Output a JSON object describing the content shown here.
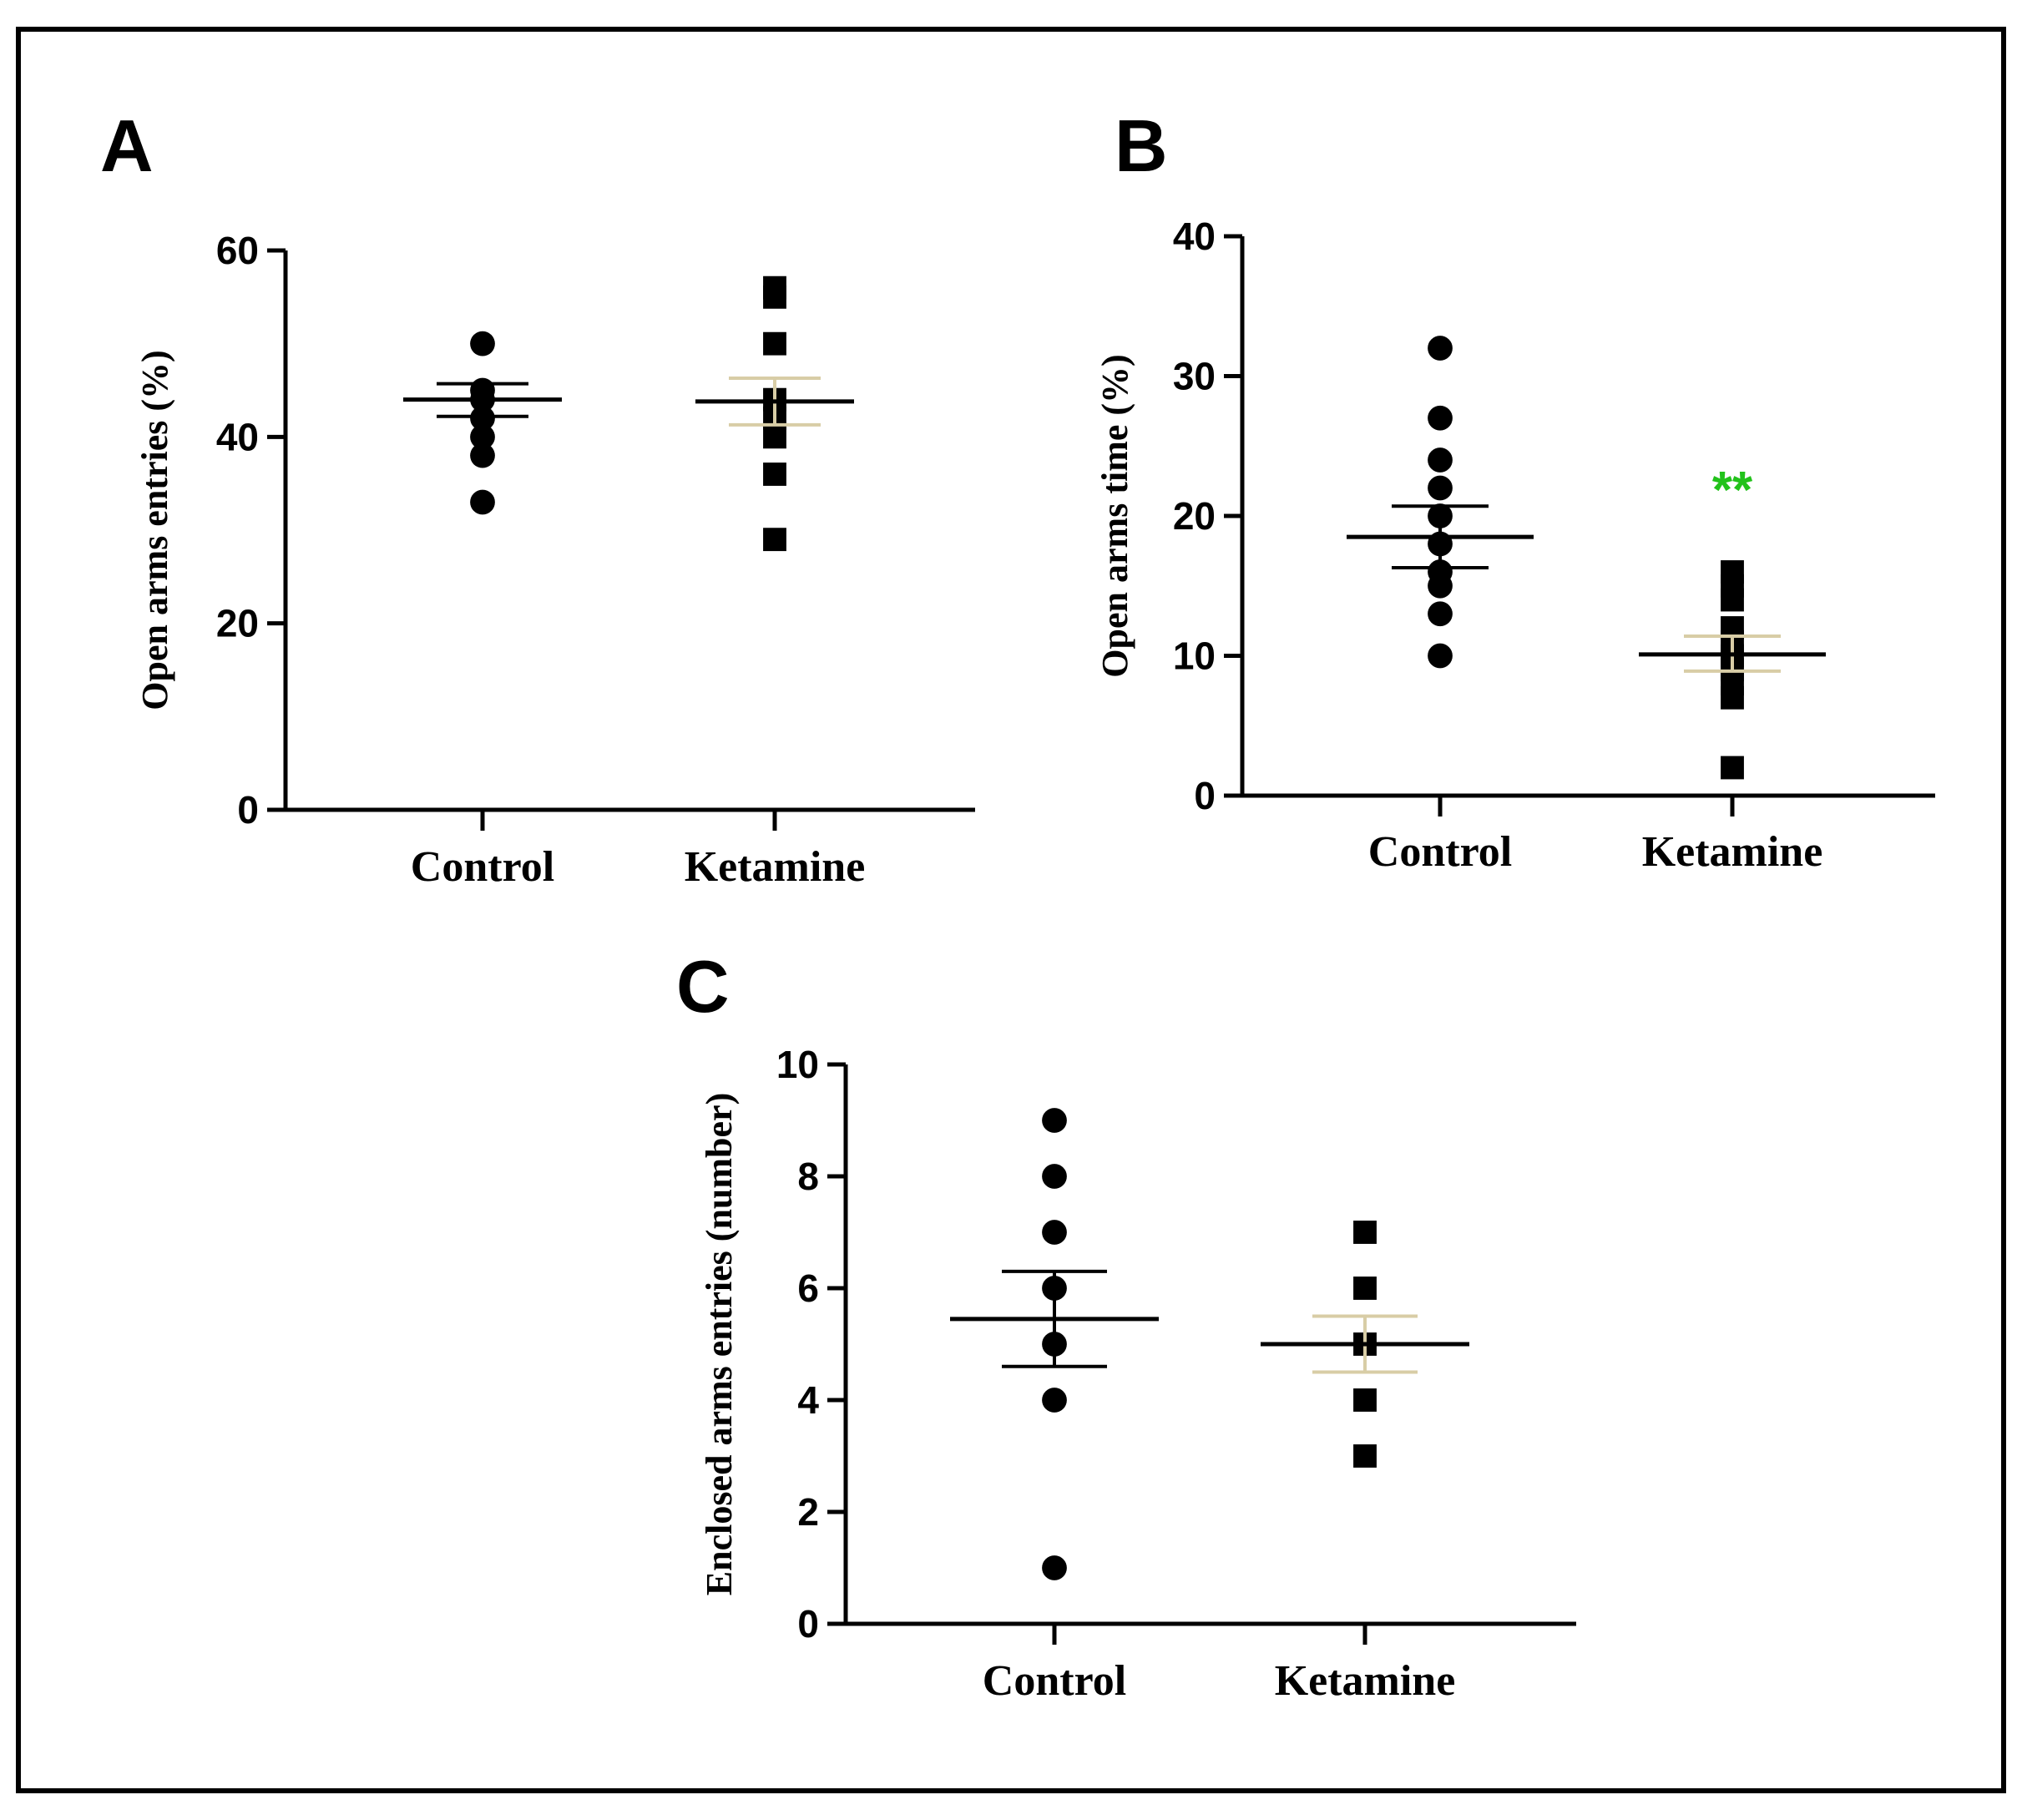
{
  "figure": {
    "frame_color": "#000000",
    "significance_color": "#22c21b"
  },
  "chart_data": [
    {
      "id": "A",
      "panel_label": "A",
      "type": "scatter",
      "subtype": "dot plot with mean and SEM",
      "ylabel": "Open arms entries (%)",
      "ylim": [
        0,
        60
      ],
      "yticks": [
        0,
        20,
        40,
        60
      ],
      "ytick_labels": [
        "0",
        "20",
        "40",
        "60"
      ],
      "categories": [
        "Control",
        "Ketamine"
      ],
      "series": [
        {
          "name": "Control",
          "marker": "circle",
          "values": [
            50,
            45,
            44,
            42,
            40,
            38,
            33
          ],
          "mean": 44,
          "sem": [
            42.2,
            45.7
          ],
          "mean_color": "#000000",
          "sem_color": "#000000"
        },
        {
          "name": "Ketamine",
          "marker": "square",
          "values": [
            56,
            55,
            50,
            44,
            42,
            40,
            36,
            29
          ],
          "mean": 43.8,
          "sem": [
            41.3,
            46.3
          ],
          "mean_color": "#000000",
          "sem_color": "#d8cda6"
        }
      ],
      "annotation": ""
    },
    {
      "id": "B",
      "panel_label": "B",
      "type": "scatter",
      "subtype": "dot plot with mean and SEM",
      "ylabel": "Open arms time (%)",
      "ylim": [
        0,
        40
      ],
      "yticks": [
        0,
        10,
        20,
        30,
        40
      ],
      "ytick_labels": [
        "0",
        "10",
        "20",
        "30",
        "40"
      ],
      "categories": [
        "Control",
        "Ketamine"
      ],
      "series": [
        {
          "name": "Control",
          "marker": "circle",
          "values": [
            32,
            27,
            24,
            22,
            20,
            18,
            16,
            15,
            13,
            10
          ],
          "mean": 18.5,
          "sem": [
            16.3,
            20.7
          ],
          "mean_color": "#000000",
          "sem_color": "#000000"
        },
        {
          "name": "Ketamine",
          "marker": "square",
          "values": [
            16,
            15,
            14,
            12,
            11,
            10,
            9,
            8,
            7,
            2
          ],
          "mean": 10.1,
          "sem": [
            8.9,
            11.4
          ],
          "mean_color": "#000000",
          "sem_color": "#d8cda6"
        }
      ],
      "annotation": "**",
      "annotation_category": "Ketamine",
      "annotation_y": 20.6
    },
    {
      "id": "C",
      "panel_label": "C",
      "type": "scatter",
      "subtype": "dot plot with mean and SEM",
      "ylabel": "Enclosed arms entries (number)",
      "ylim": [
        0,
        10
      ],
      "yticks": [
        0,
        2,
        4,
        6,
        8,
        10
      ],
      "ytick_labels": [
        "0",
        "2",
        "4",
        "6",
        "8",
        "10"
      ],
      "categories": [
        "Control",
        "Ketamine"
      ],
      "series": [
        {
          "name": "Control",
          "marker": "circle",
          "values": [
            9,
            8,
            7,
            6,
            5,
            4,
            1
          ],
          "mean": 5.45,
          "sem": [
            4.6,
            6.3
          ],
          "mean_color": "#000000",
          "sem_color": "#000000"
        },
        {
          "name": "Ketamine",
          "marker": "square",
          "values": [
            7,
            6,
            5,
            4,
            3
          ],
          "mean": 5.0,
          "sem": [
            4.5,
            5.5
          ],
          "mean_color": "#000000",
          "sem_color": "#d8cda6"
        }
      ],
      "annotation": ""
    }
  ]
}
